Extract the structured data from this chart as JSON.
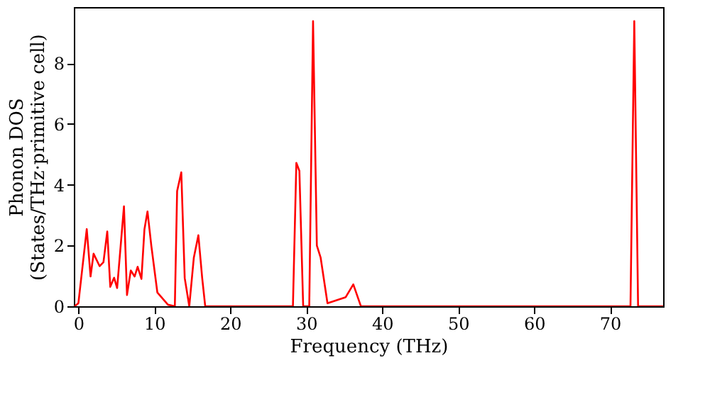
{
  "chart_data": {
    "type": "line",
    "xlabel": "Frequency (THz)",
    "ylabel": "Phonon DOS\n(States/THz·primitive cell)",
    "xlim": [
      -0.6,
      77
    ],
    "ylim": [
      0,
      9.85
    ],
    "xticks": [
      0,
      10,
      20,
      30,
      40,
      50,
      60,
      70
    ],
    "yticks": [
      0,
      2,
      4,
      6,
      8
    ],
    "grid": false,
    "marker": "none",
    "line_style": "solid",
    "series": [
      {
        "color": "#ff0000",
        "x": [
          -0.5,
          0,
          1.1,
          1.6,
          2.0,
          2.8,
          3.3,
          3.8,
          4.2,
          4.7,
          5.1,
          6.0,
          6.4,
          6.9,
          7.4,
          7.8,
          8.3,
          8.7,
          9.1,
          9.6,
          10.4,
          11.8,
          12.7,
          13.0,
          13.55,
          14.0,
          14.6,
          15.2,
          15.8,
          16.3,
          16.7,
          28.25,
          28.7,
          29.1,
          29.6,
          30.4,
          30.9,
          31.4,
          31.9,
          32.8,
          35.2,
          36.2,
          37.2,
          72.7,
          73.2,
          73.7,
          77
        ],
        "values": [
          0,
          0.1,
          2.54,
          0.98,
          1.73,
          1.32,
          1.45,
          2.46,
          0.64,
          0.94,
          0.6,
          3.29,
          0.37,
          1.18,
          0.98,
          1.3,
          0.9,
          2.54,
          3.12,
          2.0,
          0.45,
          0.05,
          0,
          3.79,
          4.41,
          0.93,
          0,
          1.6,
          2.34,
          0.93,
          0,
          0,
          4.72,
          4.46,
          0,
          0,
          9.39,
          2.0,
          1.6,
          0.1,
          0.3,
          0.72,
          0,
          0,
          9.39,
          0,
          0
        ]
      }
    ]
  }
}
